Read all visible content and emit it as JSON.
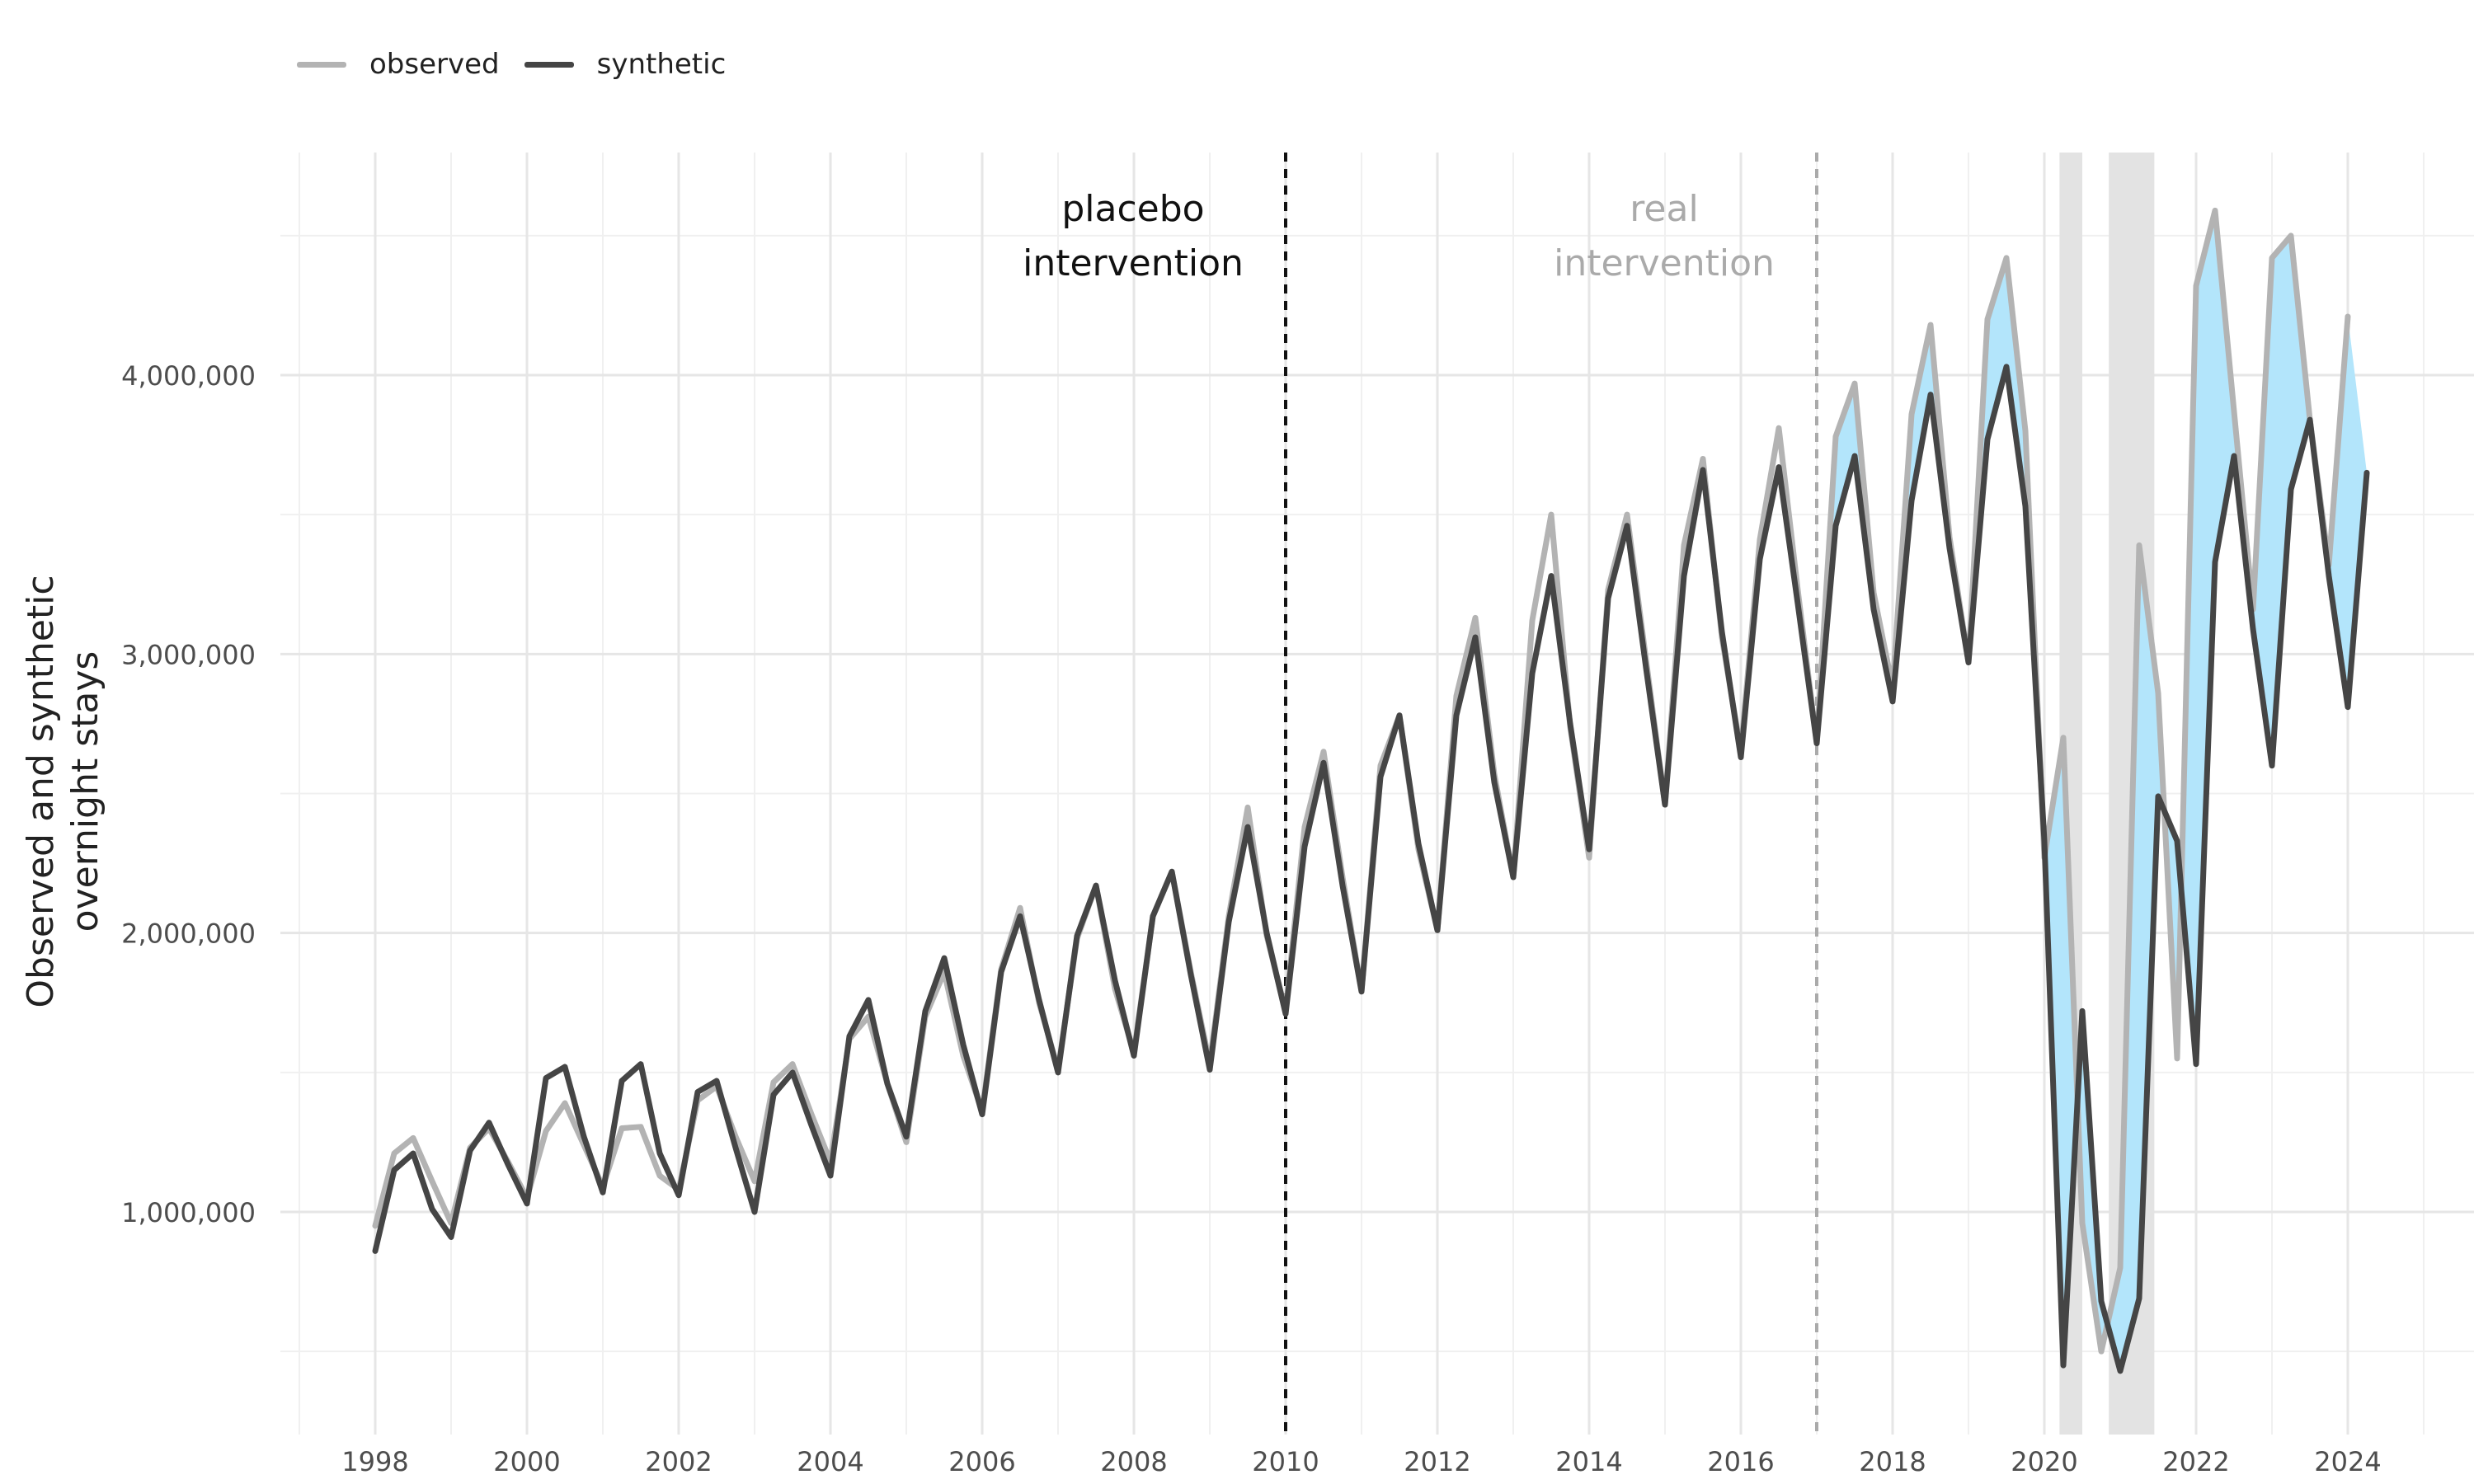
{
  "chart_data": {
    "type": "line",
    "ylabel_lines": [
      "Observed and synthetic",
      "overnight stays"
    ],
    "xlim": [
      1997.0,
      2025.5
    ],
    "ylim": [
      250000,
      4850000
    ],
    "x_ticks": [
      1998,
      2000,
      2002,
      2004,
      2006,
      2008,
      2010,
      2012,
      2014,
      2016,
      2018,
      2020,
      2022,
      2024
    ],
    "y_ticks": [
      1000000,
      2000000,
      3000000,
      4000000
    ],
    "y_tick_labels": [
      "1,000,000",
      "2,000,000",
      "3,000,000",
      "4,000,000"
    ],
    "grid": true,
    "legend_position": "top-left",
    "colors": {
      "observed": "#b3b3b3",
      "synthetic": "#454545",
      "gap_fill": "#b3e5fb",
      "shade": "#e3e3e3"
    },
    "series": [
      {
        "name": "observed",
        "start": 1998.0,
        "step": 0.25,
        "values": [
          950000,
          1210000,
          1265000,
          1110000,
          960000,
          1230000,
          1300000,
          1180000,
          1050000,
          1290000,
          1390000,
          1240000,
          1090000,
          1300000,
          1305000,
          1130000,
          1080000,
          1400000,
          1450000,
          1270000,
          1110000,
          1465000,
          1530000,
          1350000,
          1180000,
          1620000,
          1700000,
          1460000,
          1250000,
          1700000,
          1860000,
          1560000,
          1360000,
          1870000,
          2090000,
          1750000,
          1510000,
          1980000,
          2170000,
          1800000,
          1570000,
          2060000,
          2220000,
          1860000,
          1530000,
          2060000,
          2450000,
          1990000,
          1720000,
          2380000,
          2650000,
          2200000,
          1790000,
          2600000,
          2780000,
          2300000,
          2010000,
          2850000,
          3130000,
          2570000,
          2200000,
          3120000,
          3500000,
          2740000,
          2270000,
          3230000,
          3500000,
          2980000,
          2460000,
          3390000,
          3700000,
          3060000,
          2650000,
          3410000,
          3810000,
          3230000,
          2680000,
          3780000,
          3970000,
          3220000,
          2880000,
          3860000,
          4180000,
          3420000,
          2970000,
          4200000,
          4420000,
          3800000,
          2270000,
          2700000,
          960000,
          500000,
          800000,
          3390000,
          2860000,
          1550000,
          4320000,
          4590000,
          3870000,
          3160000,
          4420000,
          4500000,
          3840000,
          3320000,
          4210000
        ]
      },
      {
        "name": "synthetic",
        "start": 1998.0,
        "step": 0.25,
        "values": [
          860000,
          1150000,
          1210000,
          1010000,
          910000,
          1220000,
          1320000,
          1170000,
          1030000,
          1480000,
          1520000,
          1270000,
          1070000,
          1470000,
          1530000,
          1210000,
          1060000,
          1430000,
          1470000,
          1230000,
          1000000,
          1420000,
          1500000,
          1310000,
          1130000,
          1630000,
          1760000,
          1460000,
          1270000,
          1720000,
          1910000,
          1600000,
          1350000,
          1860000,
          2060000,
          1760000,
          1500000,
          1990000,
          2170000,
          1830000,
          1560000,
          2060000,
          2220000,
          1850000,
          1510000,
          2040000,
          2380000,
          2000000,
          1710000,
          2310000,
          2610000,
          2170000,
          1790000,
          2560000,
          2780000,
          2320000,
          2010000,
          2780000,
          3060000,
          2540000,
          2200000,
          2930000,
          3280000,
          2750000,
          2300000,
          3200000,
          3460000,
          2950000,
          2460000,
          3280000,
          3660000,
          3080000,
          2630000,
          3340000,
          3670000,
          3180000,
          2680000,
          3460000,
          3710000,
          3160000,
          2830000,
          3550000,
          3930000,
          3380000,
          2970000,
          3770000,
          4030000,
          3530000,
          2330000,
          450000,
          1720000,
          680000,
          430000,
          690000,
          2490000,
          2330000,
          1530000,
          3330000,
          3710000,
          3090000,
          2600000,
          3590000,
          3840000,
          3280000,
          2810000,
          3650000
        ]
      }
    ],
    "annotations": [
      {
        "x": 2010.0,
        "lines": [
          "placebo",
          "intervention"
        ],
        "color": "#111111",
        "line_color": "#111111"
      },
      {
        "x": 2017.0,
        "lines": [
          "real",
          "intervention"
        ],
        "color": "#aaaaaa",
        "line_color": "#aaaaaa"
      }
    ],
    "shaded_periods": [
      [
        2020.2,
        2020.5
      ],
      [
        2020.85,
        2021.45
      ]
    ],
    "gap_fill_start": 2017.0
  },
  "legend": {
    "observed_label": "observed",
    "synthetic_label": "synthetic"
  }
}
